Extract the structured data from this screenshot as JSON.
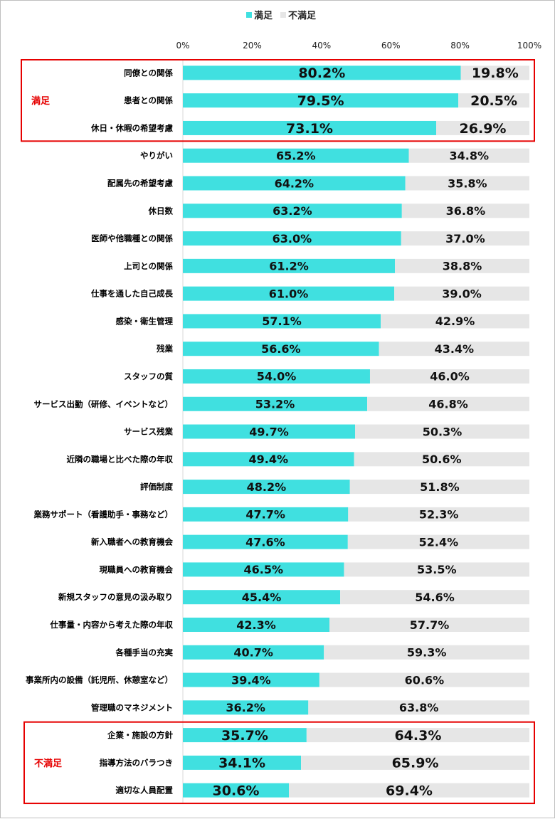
{
  "chart_data": {
    "type": "bar",
    "orientation": "horizontal",
    "stacked": true,
    "legend": {
      "position": "top-center"
    },
    "xlim": [
      0,
      100
    ],
    "xticks": [
      "0%",
      "20%",
      "40%",
      "60%",
      "80%",
      "100%"
    ],
    "categories": [
      "同僚との関係",
      "患者との関係",
      "休日・休暇の希望考慮",
      "やりがい",
      "配属先の希望考慮",
      "休日数",
      "医師や他職種との関係",
      "上司との関係",
      "仕事を通した自己成長",
      "感染・衛生管理",
      "残業",
      "スタッフの質",
      "サービス出勤（研修、イベントなど）",
      "サービス残業",
      "近隣の職場と比べた際の年収",
      "評価制度",
      "業務サポート（看護助手・事務など）",
      "新入職者への教育機会",
      "現職員への教育機会",
      "新規スタッフの意見の汲み取り",
      "仕事量・内容から考えた際の年収",
      "各種手当の充実",
      "事業所内の設備（託児所、休憩室など）",
      "管理職のマネジメント",
      "企業・施設の方針",
      "指導方法のバラつき",
      "適切な人員配置"
    ],
    "series": [
      {
        "name": "満足",
        "color": "#40e0e0",
        "values": [
          80.2,
          79.5,
          73.1,
          65.2,
          64.2,
          63.2,
          63.0,
          61.2,
          61.0,
          57.1,
          56.6,
          54.0,
          53.2,
          49.7,
          49.4,
          48.2,
          47.7,
          47.6,
          46.5,
          45.4,
          42.3,
          40.7,
          39.4,
          36.2,
          35.7,
          34.1,
          30.6
        ],
        "labels": [
          "80.2%",
          "79.5%",
          "73.1%",
          "65.2%",
          "64.2%",
          "63.2%",
          "63.0%",
          "61.2%",
          "61.0%",
          "57.1%",
          "56.6%",
          "54.0%",
          "53.2%",
          "49.7%",
          "49.4%",
          "48.2%",
          "47.7%",
          "47.6%",
          "46.5%",
          "45.4%",
          "42.3%",
          "40.7%",
          "39.4%",
          "36.2%",
          "35.7%",
          "34.1%",
          "30.6%"
        ]
      },
      {
        "name": "不満足",
        "color": "#e6e6e6",
        "values": [
          19.8,
          20.5,
          26.9,
          34.8,
          35.8,
          36.8,
          37.0,
          38.8,
          39.0,
          42.9,
          43.4,
          46.0,
          46.8,
          50.3,
          50.6,
          51.8,
          52.3,
          52.4,
          53.5,
          54.6,
          57.7,
          59.3,
          60.6,
          63.8,
          64.3,
          65.9,
          69.4
        ],
        "labels": [
          "19.8%",
          "20.5%",
          "26.9%",
          "34.8%",
          "35.8%",
          "36.8%",
          "37.0%",
          "38.8%",
          "39.0%",
          "42.9%",
          "43.4%",
          "46.0%",
          "46.8%",
          "50.3%",
          "50.6%",
          "51.8%",
          "52.3%",
          "52.4%",
          "53.5%",
          "54.6%",
          "57.7%",
          "59.3%",
          "60.6%",
          "63.8%",
          "64.3%",
          "65.9%",
          "69.4%"
        ]
      }
    ],
    "highlight_groups": [
      {
        "label": "満足",
        "color": "#e60000",
        "categories": [
          "同僚との関係",
          "患者との関係",
          "休日・休暇の希望考慮"
        ]
      },
      {
        "label": "不満足",
        "color": "#e60000",
        "categories": [
          "企業・施設の方針",
          "指導方法のバラつき",
          "適切な人員配置"
        ]
      }
    ]
  }
}
